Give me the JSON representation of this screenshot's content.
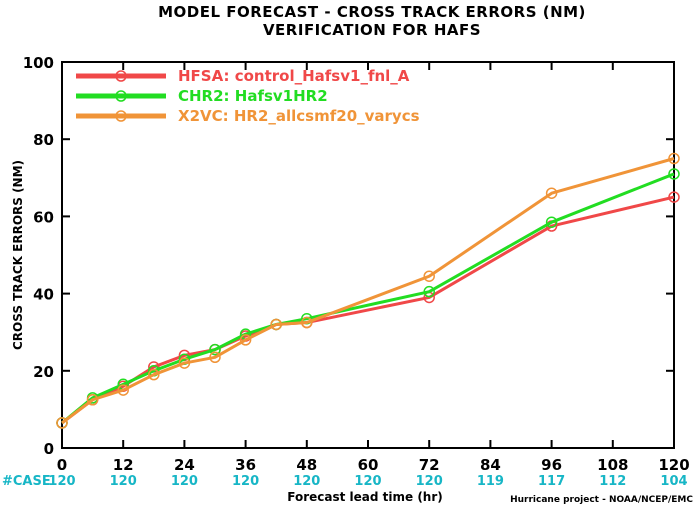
{
  "chart_data": {
    "type": "line",
    "title": "MODEL FORECAST - CROSS TRACK ERRORS (NM)",
    "subtitle": "VERIFICATION FOR HAFS",
    "xlabel": "Forecast lead time (hr)",
    "ylabel": "CROSS TRACK ERRORS (NM)",
    "xlim": [
      0,
      120
    ],
    "ylim": [
      0,
      100
    ],
    "xticks": [
      0,
      12,
      24,
      36,
      48,
      60,
      72,
      84,
      96,
      108,
      120
    ],
    "yticks": [
      0,
      20,
      40,
      60,
      80,
      100
    ],
    "grid": false,
    "legend_position": "top-left",
    "case_label": "#CASE",
    "case_counts": [
      "120",
      "120",
      "120",
      "120",
      "120",
      "120",
      "120",
      "119",
      "117",
      "112",
      "104"
    ],
    "credit": "Hurricane project - NOAA/NCEP/EMC",
    "series": [
      {
        "name": "HFSA: control_Hafsv1_fnl_A",
        "color": "#f04848",
        "x": [
          0,
          6,
          12,
          18,
          24,
          30,
          36,
          42,
          48,
          72,
          96,
          120
        ],
        "y": [
          6.5,
          12.5,
          16,
          21,
          24,
          25.5,
          29,
          32,
          32.5,
          39,
          57.5,
          65
        ]
      },
      {
        "name": "CHR2: Hafsv1HR2",
        "color": "#22dd22",
        "x": [
          0,
          6,
          12,
          18,
          24,
          30,
          36,
          42,
          48,
          72,
          96,
          120
        ],
        "y": [
          6.5,
          13,
          16.5,
          20,
          23,
          25.5,
          29.5,
          32,
          33.5,
          40.5,
          58.5,
          71
        ]
      },
      {
        "name": "X2VC: HR2_allcsmf20_varycs",
        "color": "#f09438",
        "x": [
          0,
          6,
          12,
          18,
          24,
          30,
          36,
          42,
          48,
          72,
          96,
          120
        ],
        "y": [
          6.5,
          12.5,
          15,
          19,
          22,
          23.5,
          28,
          32,
          32.5,
          44.5,
          66,
          75
        ]
      }
    ]
  }
}
